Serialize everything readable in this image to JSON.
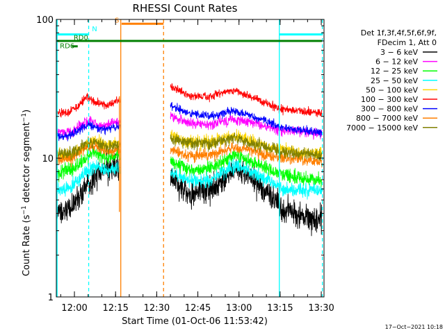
{
  "chart_data": {
    "type": "line",
    "title": "RHESSI Count Rates",
    "xlabel": "Start Time (01-Oct-06 11:53:42)",
    "ylabel_main": "Count Rate (s",
    "ylabel_sup": "−1",
    "ylabel_tail": " detector segment",
    "ylabel_sup2": "−1",
    "ylabel_close": ")",
    "yscale": "log",
    "ylim": [
      1,
      100
    ],
    "xlim_minutes": [
      -0.3,
      97.3
    ],
    "x_ticks": [
      {
        "t": 6.3,
        "label": "12:00"
      },
      {
        "t": 21.3,
        "label": "12:15"
      },
      {
        "t": 36.3,
        "label": "12:30"
      },
      {
        "t": 51.3,
        "label": "12:45"
      },
      {
        "t": 66.3,
        "label": "13:00"
      },
      {
        "t": 81.3,
        "label": "13:15"
      },
      {
        "t": 96.3,
        "label": "13:30"
      }
    ],
    "y_ticks": [
      {
        "v": 1,
        "label": "1"
      },
      {
        "v": 10,
        "label": "10"
      },
      {
        "v": 100,
        "label": "100"
      }
    ],
    "legend": {
      "header": [
        "Det 1f,3f,4f,5f,6f,9f,",
        "FDecim 1, Att 0"
      ],
      "placement": "right",
      "items": [
        {
          "label": "3 − 6 keV",
          "color": "#000000"
        },
        {
          "label": "6 − 12 keV",
          "color": "#ff00ff"
        },
        {
          "label": "12 − 25 keV",
          "color": "#00ff00"
        },
        {
          "label": "25 − 50 keV",
          "color": "#00ffff"
        },
        {
          "label": "50 − 100 keV",
          "color": "#ffd700"
        },
        {
          "label": "100 − 300 keV",
          "color": "#ff0000"
        },
        {
          "label": "300 − 800 keV",
          "color": "#0000ff"
        },
        {
          "label": "800 − 7000 keV",
          "color": "#ff7f00"
        },
        {
          "label": "7000 − 15000 keV",
          "color": "#808000"
        }
      ]
    },
    "gaps_minutes": [
      [
        22.9,
        41.3
      ]
    ],
    "series": [
      {
        "name": "3 − 6 keV",
        "color": "#000000",
        "points": [
          [
            0,
            4.0
          ],
          [
            5,
            4.3
          ],
          [
            10,
            6.0
          ],
          [
            15,
            7.8
          ],
          [
            18,
            8.5
          ],
          [
            22.5,
            8.6
          ],
          [
            41.5,
            7.2
          ],
          [
            48,
            5.5
          ],
          [
            56,
            6.0
          ],
          [
            65,
            8.4
          ],
          [
            70,
            7.5
          ],
          [
            76,
            5.8
          ],
          [
            82,
            4.4
          ],
          [
            88,
            3.8
          ],
          [
            96.5,
            3.7
          ]
        ],
        "noise": 0.09
      },
      {
        "name": "6 − 12 keV",
        "color": "#ff00ff",
        "points": [
          [
            0,
            15.5
          ],
          [
            5,
            15.2
          ],
          [
            9,
            17.5
          ],
          [
            12,
            19
          ],
          [
            16,
            17
          ],
          [
            22.5,
            18.5
          ],
          [
            41.5,
            20.0
          ],
          [
            48,
            18.0
          ],
          [
            56,
            17.5
          ],
          [
            64,
            19.0
          ],
          [
            70,
            18.2
          ],
          [
            76,
            17.0
          ],
          [
            82,
            15.8
          ],
          [
            88,
            15.5
          ],
          [
            96.5,
            15.0
          ]
        ],
        "noise": 0.035
      },
      {
        "name": "12 − 25 keV",
        "color": "#00ff00",
        "points": [
          [
            0,
            7.8
          ],
          [
            5,
            8.2
          ],
          [
            10,
            9.8
          ],
          [
            13,
            11
          ],
          [
            18,
            10
          ],
          [
            22.5,
            10.5
          ],
          [
            41.5,
            9.5
          ],
          [
            48,
            8.2
          ],
          [
            56,
            8.5
          ],
          [
            65,
            10.5
          ],
          [
            70,
            9.6
          ],
          [
            76,
            8.5
          ],
          [
            82,
            7.6
          ],
          [
            88,
            7.2
          ],
          [
            96.5,
            6.9
          ]
        ],
        "noise": 0.05
      },
      {
        "name": "25 − 50 keV",
        "color": "#00ffff",
        "points": [
          [
            0,
            5.8
          ],
          [
            5,
            6.2
          ],
          [
            10,
            7.8
          ],
          [
            15,
            8.7
          ],
          [
            18,
            8.2
          ],
          [
            22.5,
            8.5
          ],
          [
            41.5,
            8.0
          ],
          [
            48,
            6.8
          ],
          [
            56,
            7.0
          ],
          [
            65,
            8.8
          ],
          [
            70,
            8.2
          ],
          [
            76,
            7.0
          ],
          [
            82,
            6.0
          ],
          [
            88,
            5.9
          ],
          [
            96.5,
            5.8
          ]
        ],
        "noise": 0.05
      },
      {
        "name": "50 − 100 keV",
        "color": "#ffd700",
        "points": [
          [
            0,
            10.5
          ],
          [
            5,
            10.5
          ],
          [
            10,
            12
          ],
          [
            14,
            13.5
          ],
          [
            18,
            12.5
          ],
          [
            22.5,
            12.8
          ],
          [
            41.5,
            14.5
          ],
          [
            48,
            13
          ],
          [
            56,
            13
          ],
          [
            64,
            14.5
          ],
          [
            70,
            13.5
          ],
          [
            76,
            12.2
          ],
          [
            82,
            11.5
          ],
          [
            88,
            11.0
          ],
          [
            96.5,
            10.8
          ]
        ],
        "noise": 0.045
      },
      {
        "name": "100 − 300 keV",
        "color": "#ff0000",
        "points": [
          [
            0,
            21
          ],
          [
            4,
            21.5
          ],
          [
            8,
            24
          ],
          [
            11,
            28
          ],
          [
            14,
            25
          ],
          [
            18,
            24
          ],
          [
            22.5,
            26
          ],
          [
            41.5,
            33
          ],
          [
            48,
            28
          ],
          [
            56,
            28
          ],
          [
            64,
            31
          ],
          [
            70,
            28
          ],
          [
            76,
            25
          ],
          [
            82,
            22.5
          ],
          [
            88,
            22
          ],
          [
            96.5,
            21
          ]
        ],
        "noise": 0.03
      },
      {
        "name": "300 − 800 keV",
        "color": "#0000ff",
        "points": [
          [
            0,
            14.5
          ],
          [
            5,
            14.5
          ],
          [
            9,
            16.5
          ],
          [
            12,
            17.5
          ],
          [
            16,
            16
          ],
          [
            22.5,
            17
          ],
          [
            41.5,
            24
          ],
          [
            48,
            21
          ],
          [
            56,
            20
          ],
          [
            64,
            22
          ],
          [
            70,
            20.5
          ],
          [
            76,
            18.5
          ],
          [
            82,
            16.5
          ],
          [
            88,
            16
          ],
          [
            96.5,
            15.2
          ]
        ],
        "noise": 0.03
      },
      {
        "name": "800 − 7000 keV",
        "color": "#ff7f00",
        "points": [
          [
            0,
            9.8
          ],
          [
            5,
            9.9
          ],
          [
            10,
            11.8
          ],
          [
            13,
            12.2
          ],
          [
            18,
            11
          ],
          [
            22.5,
            11.5
          ],
          [
            41.5,
            11.5
          ],
          [
            48,
            10.5
          ],
          [
            56,
            10.6
          ],
          [
            65,
            12.0
          ],
          [
            70,
            11.5
          ],
          [
            76,
            10.5
          ],
          [
            82,
            10.0
          ],
          [
            88,
            9.8
          ],
          [
            96.5,
            9.5
          ]
        ],
        "noise": 0.04
      },
      {
        "name": "7000 − 15000 keV",
        "color": "#808000",
        "points": [
          [
            0,
            10.8
          ],
          [
            5,
            10.8
          ],
          [
            10,
            12.4
          ],
          [
            14,
            13.0
          ],
          [
            18,
            12
          ],
          [
            22.5,
            12.3
          ],
          [
            41.5,
            14
          ],
          [
            48,
            12.8
          ],
          [
            56,
            12.8
          ],
          [
            64,
            14
          ],
          [
            70,
            13
          ],
          [
            76,
            12
          ],
          [
            82,
            11.2
          ],
          [
            88,
            10.8
          ],
          [
            96.5,
            10.5
          ]
        ],
        "noise": 0.045
      }
    ],
    "overlays": [
      {
        "kind": "vline",
        "t": 0.0,
        "color": "#00ffff",
        "dash": false
      },
      {
        "kind": "vline",
        "t": 11.5,
        "color": "#00ffff",
        "dash": true
      },
      {
        "kind": "vline",
        "t": 81.0,
        "color": "#00ffff",
        "dash": false
      },
      {
        "kind": "vline",
        "t": 96.7,
        "color": "#00ffff",
        "dash": true
      },
      {
        "kind": "vline",
        "t": 23.2,
        "color": "#ff7f00",
        "dash": false,
        "v_top": 100,
        "v_bottom": 1
      },
      {
        "kind": "vline",
        "t": 22.7,
        "color": "#ff7f00",
        "dash": false,
        "v_top": 28,
        "v_bottom": 4.1
      },
      {
        "kind": "vline",
        "t": 38.8,
        "color": "#ff7f00",
        "dash": true
      }
    ],
    "state_bars": [
      {
        "label": "N",
        "t_start": 0.0,
        "t_end": 11.5,
        "v": 78,
        "color": "#00ffff",
        "label_t": 12.7,
        "label_v": 82
      },
      {
        "label": "N",
        "t_start": 81.0,
        "t_end": 96.5,
        "v": 78,
        "color": "#00ffff",
        "label_t": null,
        "label_v": null
      },
      {
        "label": "S",
        "t_start": 23.5,
        "t_end": 38.8,
        "v": 93,
        "color": "#ff7f00",
        "label_t": 21.0,
        "label_v": 95
      },
      {
        "label": "RD0",
        "t_start": 0.0,
        "t_end": 96.5,
        "v": 70,
        "color": "#007f00",
        "label_t": 6.0,
        "label_v": 71
      },
      {
        "label": "RD6",
        "t_start": 5.4,
        "t_end": 7.5,
        "v": 64,
        "color": "#007f00",
        "label_t": 1.0,
        "label_v": 62
      }
    ]
  },
  "timestamp": "17−Oct−2021 10:18"
}
